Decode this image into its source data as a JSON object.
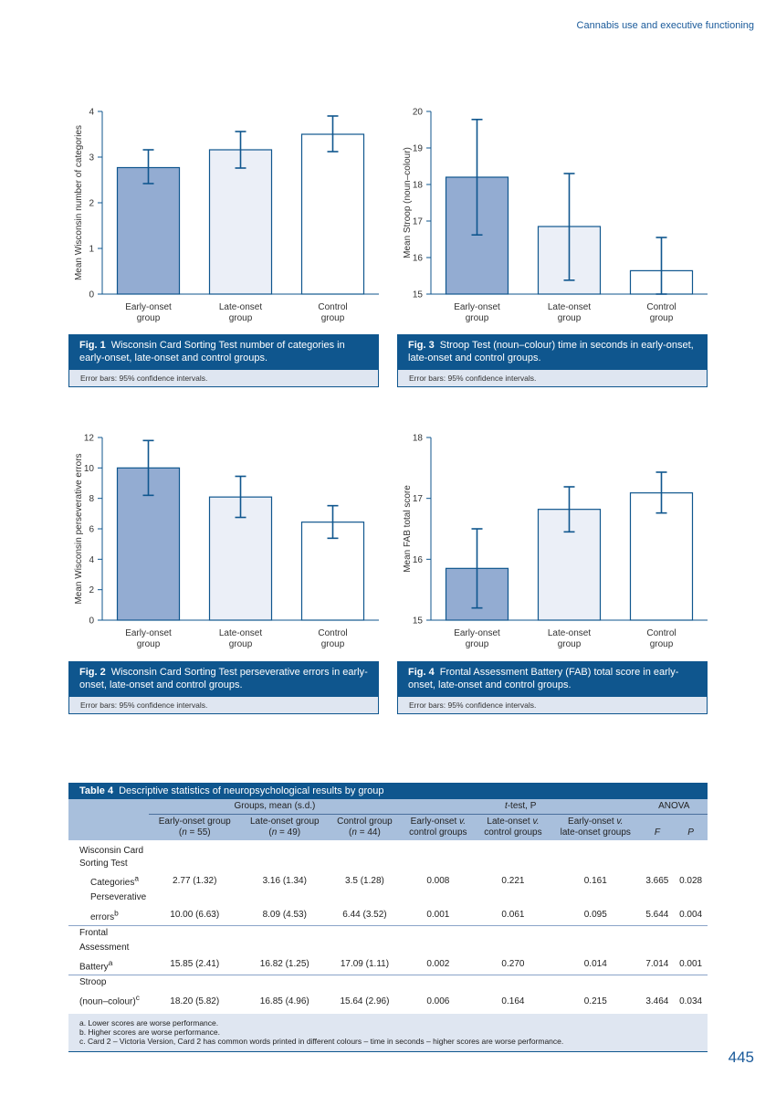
{
  "running_head": "Cannabis use and executive functioning",
  "page_number": "445",
  "chart_data": [
    {
      "id": "fig1",
      "type": "bar",
      "categories": [
        "Early-onset group",
        "Late-onset group",
        "Control group"
      ],
      "values": [
        2.77,
        3.16,
        3.5
      ],
      "error_low": [
        2.42,
        2.76,
        3.12
      ],
      "error_high": [
        3.16,
        3.56,
        3.9
      ],
      "ylabel": "Mean Wisconsin number of categories",
      "ylim": [
        0,
        4
      ],
      "ticks": [
        0,
        1,
        2,
        3,
        4
      ],
      "bar_colors": [
        "#93acd2",
        "#ebeff7",
        "#ffffff"
      ],
      "caption_label": "Fig. 1",
      "caption_text": "Wisconsin Card Sorting Test number of categories in early-onset, late-onset and control groups.",
      "note": "Error bars: 95% confidence intervals."
    },
    {
      "id": "fig3",
      "type": "bar",
      "categories": [
        "Early-onset group",
        "Late-onset group",
        "Control group"
      ],
      "values": [
        18.2,
        16.85,
        15.64
      ],
      "error_low": [
        16.62,
        15.38,
        15.0
      ],
      "error_high": [
        19.78,
        18.3,
        16.55
      ],
      "ylabel": "Mean Stroop (noun–colour)",
      "ylim": [
        15,
        20
      ],
      "ticks": [
        15,
        16,
        17,
        18,
        19,
        20
      ],
      "bar_colors": [
        "#93acd2",
        "#ebeff7",
        "#ffffff"
      ],
      "caption_label": "Fig. 3",
      "caption_text": "Stroop Test (noun–colour) time in seconds in early-onset, late-onset and control groups.",
      "note": "Error bars: 95% confidence intervals."
    },
    {
      "id": "fig2",
      "type": "bar",
      "categories": [
        "Early-onset group",
        "Late-onset group",
        "Control group"
      ],
      "values": [
        10.0,
        8.09,
        6.44
      ],
      "error_low": [
        8.2,
        6.75,
        5.38
      ],
      "error_high": [
        11.8,
        9.45,
        7.52
      ],
      "ylabel": "Mean Wisconsin perseverative errors",
      "ylim": [
        0,
        12
      ],
      "ticks": [
        0,
        2,
        4,
        6,
        8,
        10,
        12
      ],
      "bar_colors": [
        "#93acd2",
        "#ebeff7",
        "#ffffff"
      ],
      "caption_label": "Fig. 2",
      "caption_text": "Wisconsin Card Sorting Test perseverative errors in early-onset, late-onset and control groups.",
      "note": "Error bars: 95% confidence intervals."
    },
    {
      "id": "fig4",
      "type": "bar",
      "categories": [
        "Early-onset group",
        "Late-onset group",
        "Control group"
      ],
      "values": [
        15.85,
        16.82,
        17.09
      ],
      "error_low": [
        15.2,
        16.45,
        16.76
      ],
      "error_high": [
        16.5,
        17.19,
        17.43
      ],
      "ylabel": "Mean FAB total score",
      "ylim": [
        15,
        18
      ],
      "ticks": [
        15,
        16,
        17,
        18
      ],
      "bar_colors": [
        "#93acd2",
        "#ebeff7",
        "#ffffff"
      ],
      "caption_label": "Fig. 4",
      "caption_text": "Frontal Assessment Battery (FAB) total score in early-onset, late-onset and control groups.",
      "note": "Error bars: 95% confidence intervals."
    }
  ],
  "table4": {
    "label": "Table 4",
    "title": "Descriptive statistics of neuropsychological results by group",
    "group_headers": {
      "groups": "Groups, mean (s.d.)",
      "ttest_t": "t",
      "ttest_rest": "-test, P",
      "anova": "ANOVA"
    },
    "columns": [
      {
        "line1": "Early-onset group",
        "line2a": "(",
        "n": "n",
        "line2b": " = 55)"
      },
      {
        "line1": "Late-onset group",
        "line2a": "(",
        "n": "n",
        "line2b": " = 49)"
      },
      {
        "line1": "Control group",
        "line2a": "(",
        "n": "n",
        "line2b": " = 44)"
      },
      {
        "line1a": "Early-onset ",
        "v": "v.",
        "line2": "control groups"
      },
      {
        "line1a": "Late-onset ",
        "v": "v.",
        "line2": "control groups"
      },
      {
        "line1a": "Early-onset ",
        "v": "v.",
        "line2": "late-onset groups"
      },
      {
        "line1": "",
        "line2": "F"
      },
      {
        "line1": "",
        "line2": "P"
      }
    ],
    "sections": {
      "wisconsin": "Wisconsin Card Sorting Test",
      "categories_label": "Categories",
      "categories_sup": "a",
      "categories": [
        "2.77 (1.32)",
        "3.16 (1.34)",
        "3.5 (1.28)",
        "0.008",
        "0.221",
        "0.161",
        "3.665",
        "0.028"
      ],
      "persev_line1": "Perseverative",
      "persev_label": "errors",
      "persev_sup": "b",
      "persev": [
        "10.00 (6.63)",
        "8.09 (4.53)",
        "6.44 (3.52)",
        "0.001",
        "0.061",
        "0.095",
        "5.644",
        "0.004"
      ],
      "fab_line1": "Frontal",
      "fab_line2": "Assessment",
      "fab_label": "Battery",
      "fab_sup": "a",
      "fab": [
        "15.85 (2.41)",
        "16.82 (1.25)",
        "17.09 (1.11)",
        "0.002",
        "0.270",
        "0.014",
        "7.014",
        "0.001"
      ],
      "stroop_line1": "Stroop",
      "stroop_label": "(noun–colour)",
      "stroop_sup": "c",
      "stroop": [
        "18.20 (5.82)",
        "16.85 (4.96)",
        "15.64 (2.96)",
        "0.006",
        "0.164",
        "0.215",
        "3.464",
        "0.034"
      ]
    },
    "footnotes": [
      "a. Lower scores are worse performance.",
      "b. Higher scores are worse performance.",
      "c. Card 2 – Victoria Version, Card 2 has common words printed in different colours – time in seconds – higher scores are worse performance."
    ]
  }
}
